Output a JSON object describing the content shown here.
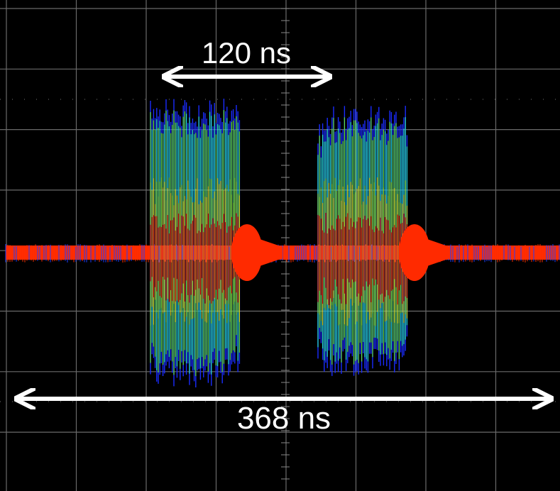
{
  "labels": [
    "120 ns",
    "368 ns"
  ]
}
